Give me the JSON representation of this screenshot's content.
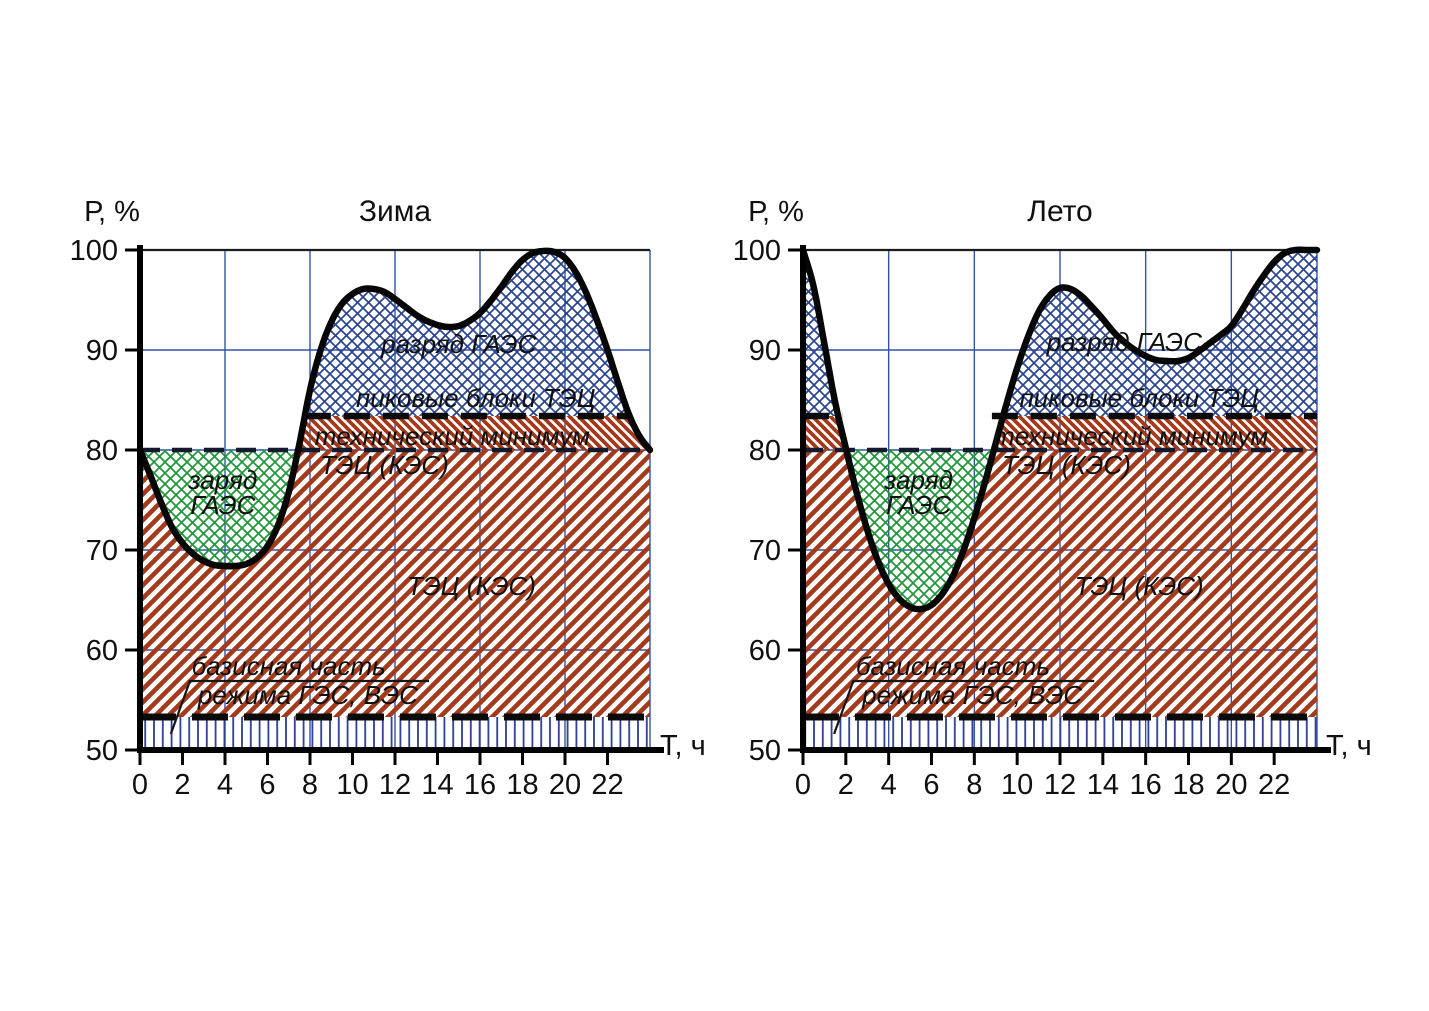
{
  "figure_caption": "",
  "colors": {
    "hatch_red": "#A23A1B",
    "cross_blue": "#2A4590",
    "cross_green": "#1F9638",
    "base_vertical": "#2D3F8E",
    "grid": "#3352A6",
    "top_border": "#1c1c1c",
    "line_black": "#0b0b0b",
    "dash80": "#141a2e",
    "text": "#101010"
  },
  "chart_data": [
    {
      "type": "area",
      "title": "Зима",
      "ylabel": "Р, %",
      "xlabel": "Т, ч",
      "xlim": [
        0,
        24
      ],
      "ylim": [
        50,
        100
      ],
      "xticks": [
        0,
        2,
        4,
        6,
        8,
        10,
        12,
        14,
        16,
        18,
        20,
        22
      ],
      "yticks": [
        100,
        90,
        80,
        70,
        60,
        50
      ],
      "grid_x": [
        4,
        8,
        12,
        16,
        20,
        24
      ],
      "grid_y": [
        60,
        70,
        80,
        90
      ],
      "levels": {
        "peak_blocks_boundary": 83.4,
        "gaes_charge_boundary": 80,
        "base_boundary": 53.3
      },
      "curve": [
        [
          0,
          80
        ],
        [
          0.5,
          77.4
        ],
        [
          1,
          74.7
        ],
        [
          1.5,
          72.3
        ],
        [
          2,
          70.7
        ],
        [
          2.5,
          69.6
        ],
        [
          3,
          68.9
        ],
        [
          3.5,
          68.5
        ],
        [
          4,
          68.4
        ],
        [
          4.5,
          68.4
        ],
        [
          5,
          68.6
        ],
        [
          5.5,
          69.2
        ],
        [
          6,
          70.4
        ],
        [
          6.5,
          72.5
        ],
        [
          7,
          75.8
        ],
        [
          7.5,
          80.6
        ],
        [
          8,
          86
        ],
        [
          8.5,
          90
        ],
        [
          9,
          92.8
        ],
        [
          9.5,
          94.6
        ],
        [
          10,
          95.6
        ],
        [
          10.5,
          96.1
        ],
        [
          11,
          96.1
        ],
        [
          11.5,
          95.8
        ],
        [
          12,
          95.1
        ],
        [
          12.5,
          94.3
        ],
        [
          13,
          93.5
        ],
        [
          13.5,
          92.9
        ],
        [
          14,
          92.5
        ],
        [
          14.5,
          92.3
        ],
        [
          15,
          92.4
        ],
        [
          15.5,
          92.9
        ],
        [
          16,
          93.7
        ],
        [
          16.5,
          94.9
        ],
        [
          17,
          96.3
        ],
        [
          17.5,
          97.8
        ],
        [
          18,
          99.0
        ],
        [
          18.5,
          99.7
        ],
        [
          19,
          99.9
        ],
        [
          19.5,
          99.8
        ],
        [
          20,
          99.2
        ],
        [
          20.5,
          97.8
        ],
        [
          21,
          95.7
        ],
        [
          21.5,
          93.0
        ],
        [
          22,
          90.0
        ],
        [
          22.5,
          86.7
        ],
        [
          23,
          83.6
        ],
        [
          23.5,
          81.4
        ],
        [
          24,
          80
        ]
      ],
      "dashed_lines": [
        {
          "name": "peak-blocks-boundary",
          "p": 83.4,
          "style": "heavy",
          "segments": [
            [
              7.76,
              23.08
            ]
          ]
        },
        {
          "name": "tech-min-boundary",
          "p": 80,
          "style": "medium",
          "segments": [
            [
              0,
              24
            ]
          ]
        },
        {
          "name": "base-boundary",
          "p": 53.3,
          "style": "heavy-long",
          "segments": [
            [
              0,
              24
            ]
          ]
        }
      ],
      "regions": [
        {
          "label": "разряд ГАЭС",
          "between": [
            "curve",
            "peak_blocks_boundary"
          ],
          "hatch": "cross-blue"
        },
        {
          "label": "пиковые блоки ТЭЦ",
          "between": [
            "curve",
            "peak_blocks_boundary"
          ],
          "hatch": "cross-blue"
        },
        {
          "label": "технический минимум ТЭЦ (КЭС)",
          "between": [
            "gaes_charge_boundary",
            "peak_blocks_boundary"
          ],
          "hatch": "diag-band-red"
        },
        {
          "label": "заряд ГАЭС",
          "between": [
            "curve",
            "gaes_charge_boundary"
          ],
          "hatch": "cross-green"
        },
        {
          "label": "ТЭЦ (КЭС)",
          "between": [
            "base_boundary",
            "curve"
          ],
          "hatch": "diag-red"
        },
        {
          "label": "базисная часть режима ГЭС, ВЭС",
          "between": [
            50,
            "base_boundary"
          ],
          "hatch": "vertical-blue"
        }
      ],
      "region_labels": [
        {
          "text": "разряд ГАЭС",
          "t": 15.0,
          "p": 90.6
        },
        {
          "text": "пиковые блоки ТЭЦ",
          "t": 15.8,
          "p": 85.2
        },
        {
          "text": "технический минимум",
          "t": 14.7,
          "p": 81.4
        },
        {
          "text": "ТЭЦ (КЭС)",
          "t": 11.5,
          "p": 78.5
        },
        {
          "text": "заряд",
          "t": 3.9,
          "p": 77.0
        },
        {
          "text": "ГАЭС",
          "t": 3.9,
          "p": 74.5
        },
        {
          "text": "ТЭЦ (КЭС)",
          "t": 15.6,
          "p": 66.4
        },
        {
          "text": "базисная часть",
          "t": 7.0,
          "p": 58.4
        },
        {
          "text": "режима ГЭС, ВЭС",
          "t": 7.9,
          "p": 55.5
        }
      ],
      "annotation_lines": [
        {
          "name": "fraction-bar",
          "t1": 2.3,
          "p1": 56.9,
          "t2": 13.6,
          "p2": 56.9
        },
        {
          "name": "leader",
          "t1": 1.45,
          "p1": 51.6,
          "t2": 2.35,
          "p2": 56.9
        }
      ]
    },
    {
      "type": "area",
      "title": "Лето",
      "ylabel": "Р, %",
      "xlabel": "Т, ч",
      "xlim": [
        0,
        24
      ],
      "ylim": [
        50,
        100
      ],
      "xticks": [
        0,
        2,
        4,
        6,
        8,
        10,
        12,
        14,
        16,
        18,
        20,
        22
      ],
      "yticks": [
        100,
        90,
        80,
        70,
        60,
        50
      ],
      "grid_x": [
        4,
        8,
        12,
        16,
        20,
        24
      ],
      "grid_y": [
        60,
        70,
        80,
        90
      ],
      "levels": {
        "peak_blocks_boundary": 83.4,
        "gaes_charge_boundary": 80,
        "base_boundary": 53.3
      },
      "curve": [
        [
          0,
          100
        ],
        [
          0.5,
          96.3
        ],
        [
          1,
          90.6
        ],
        [
          1.5,
          84.8
        ],
        [
          2,
          80.2
        ],
        [
          2.5,
          75.8
        ],
        [
          3,
          72
        ],
        [
          3.5,
          68.9
        ],
        [
          4,
          66.6
        ],
        [
          4.5,
          65.1
        ],
        [
          5,
          64.3
        ],
        [
          5.5,
          64.1
        ],
        [
          6,
          64.5
        ],
        [
          6.5,
          65.6
        ],
        [
          7,
          67.4
        ],
        [
          7.5,
          70
        ],
        [
          8,
          73.2
        ],
        [
          8.5,
          76.8
        ],
        [
          9,
          80.7
        ],
        [
          9.5,
          84.6
        ],
        [
          10,
          88.2
        ],
        [
          10.5,
          91.3
        ],
        [
          11,
          93.8
        ],
        [
          11.5,
          95.4
        ],
        [
          12,
          96.2
        ],
        [
          12.5,
          96.1
        ],
        [
          13,
          95.4
        ],
        [
          13.5,
          94.3
        ],
        [
          14,
          93.1
        ],
        [
          14.5,
          91.8
        ],
        [
          15,
          90.8
        ],
        [
          15.5,
          90.0
        ],
        [
          16,
          89.4
        ],
        [
          16.5,
          89.0
        ],
        [
          17,
          88.9
        ],
        [
          17.5,
          88.9
        ],
        [
          18,
          89.2
        ],
        [
          18.5,
          89.9
        ],
        [
          19,
          90.7
        ],
        [
          19.5,
          91.5
        ],
        [
          20,
          92.4
        ],
        [
          20.5,
          94.0
        ],
        [
          21,
          95.8
        ],
        [
          21.5,
          97.4
        ],
        [
          22,
          98.8
        ],
        [
          22.5,
          99.7
        ],
        [
          23,
          100
        ],
        [
          23.5,
          100
        ],
        [
          24,
          100
        ]
      ],
      "dashed_lines": [
        {
          "name": "peak-blocks-boundary",
          "p": 83.4,
          "style": "heavy",
          "segments": [
            [
              0,
              1.83
            ],
            [
              8.82,
              24
            ]
          ]
        },
        {
          "name": "tech-min-boundary",
          "p": 80,
          "style": "medium",
          "segments": [
            [
              0,
              24
            ]
          ]
        },
        {
          "name": "base-boundary",
          "p": 53.3,
          "style": "heavy-long",
          "segments": [
            [
              0,
              24
            ]
          ]
        }
      ],
      "regions": [
        {
          "label": "разряд ГАЭС",
          "between": [
            "curve",
            "peak_blocks_boundary"
          ],
          "hatch": "cross-blue"
        },
        {
          "label": "пиковые блоки ТЭЦ",
          "between": [
            "curve",
            "peak_blocks_boundary"
          ],
          "hatch": "cross-blue"
        },
        {
          "label": "технический минимум ТЭЦ (КЭС)",
          "between": [
            "gaes_charge_boundary",
            "peak_blocks_boundary"
          ],
          "hatch": "diag-band-red"
        },
        {
          "label": "заряд ГАЭС",
          "between": [
            "curve",
            "gaes_charge_boundary"
          ],
          "hatch": "cross-green"
        },
        {
          "label": "ТЭЦ (КЭС)",
          "between": [
            "base_boundary",
            "curve"
          ],
          "hatch": "diag-red"
        },
        {
          "label": "базисная часть режима ГЭС, ВЭС",
          "between": [
            50,
            "base_boundary"
          ],
          "hatch": "vertical-blue"
        }
      ],
      "region_labels": [
        {
          "text": "разряд ГАЭС",
          "t": 15.0,
          "p": 90.8
        },
        {
          "text": "пиковые блоки ТЭЦ",
          "t": 15.7,
          "p": 85.2
        },
        {
          "text": "технический минимум",
          "t": 15.3,
          "p": 81.4
        },
        {
          "text": "ТЭЦ (КЭС)",
          "t": 12.3,
          "p": 78.5
        },
        {
          "text": "заряд",
          "t": 5.4,
          "p": 77.0
        },
        {
          "text": "ГАЭС",
          "t": 5.4,
          "p": 74.5
        },
        {
          "text": "ТЭЦ (КЭС)",
          "t": 15.7,
          "p": 66.4
        },
        {
          "text": "базисная часть",
          "t": 7.0,
          "p": 58.4
        },
        {
          "text": "режима ГЭС, ВЭС",
          "t": 7.9,
          "p": 55.5
        }
      ],
      "annotation_lines": [
        {
          "name": "fraction-bar",
          "t1": 2.3,
          "p1": 56.9,
          "t2": 13.6,
          "p2": 56.9
        },
        {
          "name": "leader",
          "t1": 1.45,
          "p1": 51.6,
          "t2": 2.35,
          "p2": 56.9
        }
      ]
    }
  ]
}
